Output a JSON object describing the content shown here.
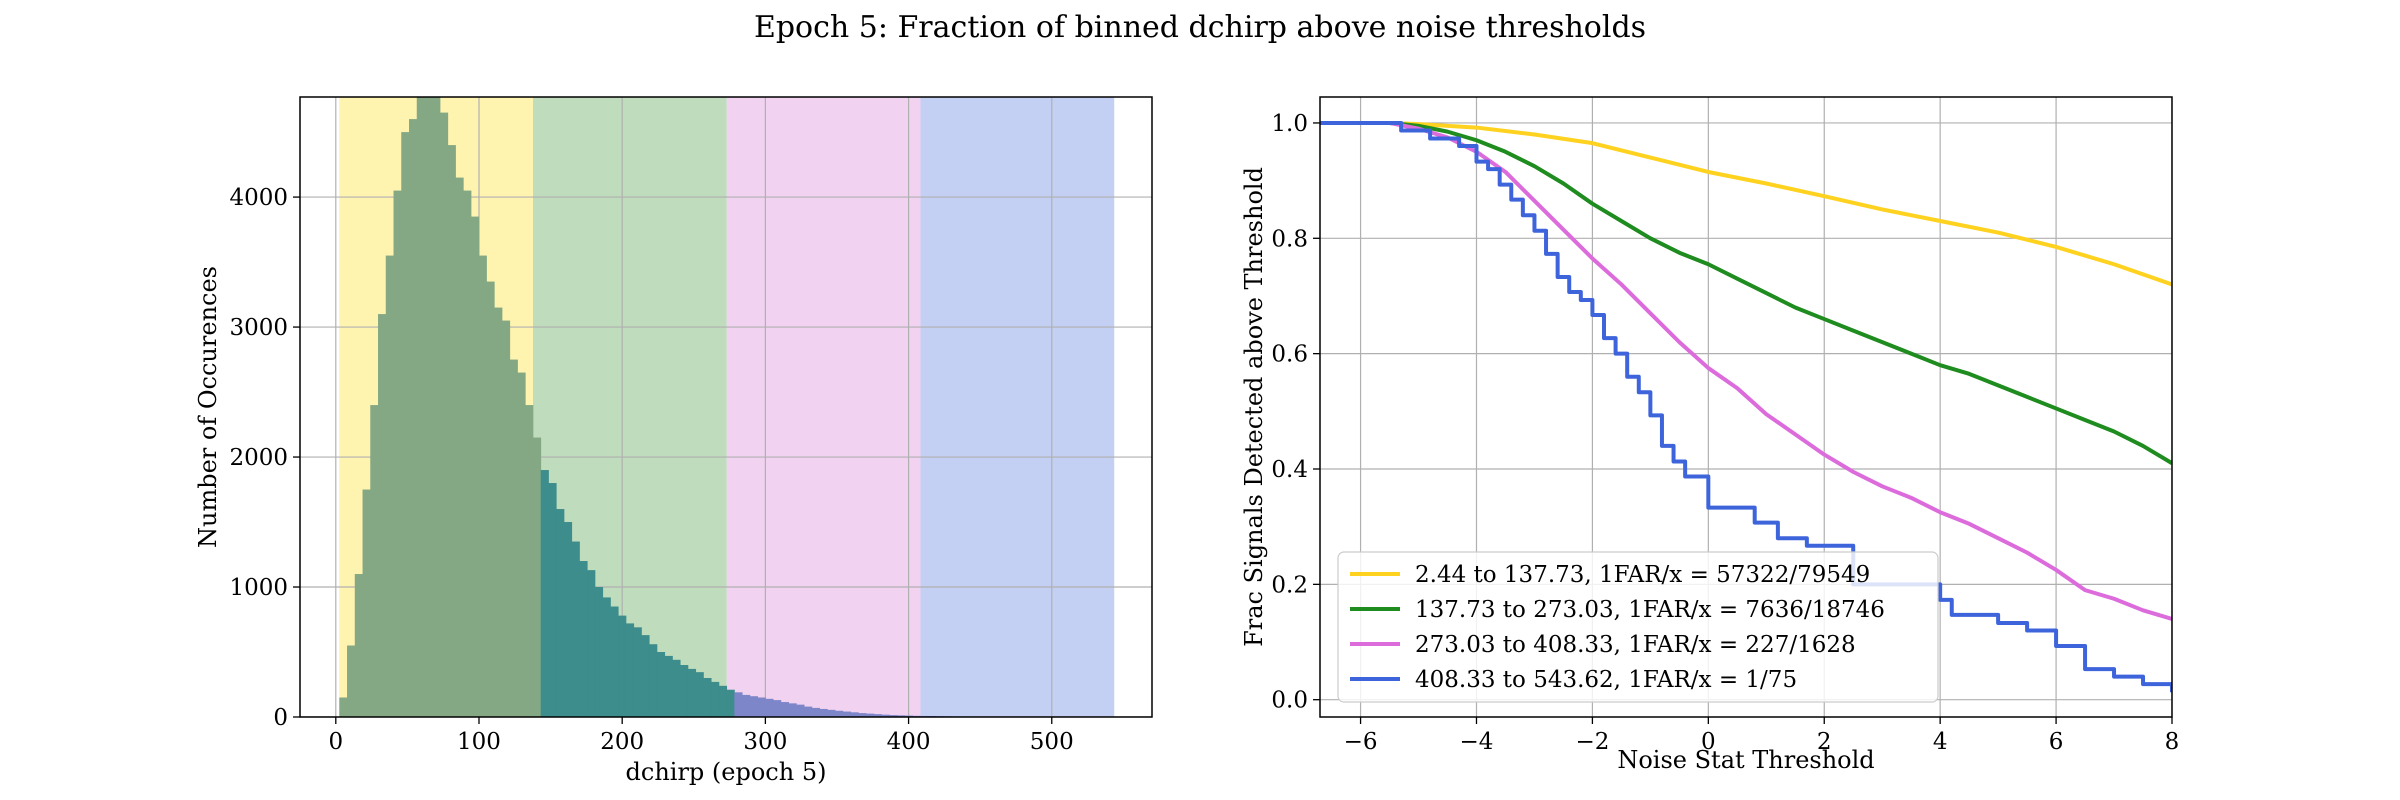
{
  "figure": {
    "title": "Epoch 5: Fraction of binned dchirp above noise thresholds"
  },
  "chart_data": [
    {
      "type": "bar",
      "subtype": "histogram",
      "xlabel": "dchirp (epoch 5)",
      "ylabel": "Number of Occurences",
      "xlim": [
        -25,
        570
      ],
      "ylim": [
        0,
        4770
      ],
      "xticks": [
        0,
        100,
        200,
        300,
        400,
        500
      ],
      "yticks": [
        0,
        1000,
        2000,
        3000,
        4000
      ],
      "grid": true,
      "bin_edges_start": 2.44,
      "bin_width": 5.41,
      "values": [
        150,
        550,
        1100,
        1750,
        2400,
        3100,
        3550,
        4050,
        4500,
        4600,
        4770,
        4770,
        4770,
        4650,
        4400,
        4150,
        4050,
        3850,
        3550,
        3350,
        3150,
        3050,
        2750,
        2650,
        2400,
        2150,
        1900,
        1800,
        1600,
        1500,
        1350,
        1200,
        1130,
        1000,
        920,
        850,
        780,
        720,
        690,
        630,
        560,
        500,
        470,
        440,
        400,
        370,
        345,
        300,
        270,
        240,
        210,
        190,
        170,
        160,
        150,
        140,
        130,
        115,
        105,
        95,
        80,
        70,
        62,
        55,
        48,
        42,
        36,
        30,
        26,
        22,
        18,
        15,
        13,
        11,
        9,
        8,
        7,
        6,
        5,
        4,
        4,
        3,
        3,
        2,
        2,
        2,
        1,
        1,
        1,
        1,
        1,
        1,
        1,
        0,
        0,
        0,
        0,
        0,
        0,
        0
      ],
      "bands": [
        {
          "from": 2.44,
          "to": 137.73,
          "color": "#fff3b0"
        },
        {
          "from": 137.73,
          "to": 273.03,
          "color": "#bfdcbc"
        },
        {
          "from": 273.03,
          "to": 408.33,
          "color": "#f1d3f1"
        },
        {
          "from": 408.33,
          "to": 543.62,
          "color": "#c4d0f3"
        }
      ],
      "bar_colors": [
        "#84a884",
        "#3d8d8d",
        "#7c86c8",
        "#5b70d8"
      ]
    },
    {
      "type": "line",
      "subtype": "step",
      "xlabel": "Noise Stat Threshold",
      "ylabel": "Frac Signals Detected above Threshold",
      "xlim": [
        -6.7,
        8
      ],
      "ylim": [
        -0.03,
        1.045
      ],
      "xticks": [
        -6,
        -4,
        -2,
        0,
        2,
        4,
        6,
        8
      ],
      "xtick_labels": [
        "−6",
        "−4",
        "−2",
        "0",
        "2",
        "4",
        "6",
        "8"
      ],
      "yticks": [
        0.0,
        0.2,
        0.4,
        0.6,
        0.8,
        1.0
      ],
      "ytick_labels": [
        "0.0",
        "0.2",
        "0.4",
        "0.6",
        "0.8",
        "1.0"
      ],
      "grid": true,
      "legend_position": "lower-left",
      "series": [
        {
          "name": "2.44 to 137.73, 1FAR/x = 57322/79549",
          "color": "#ffd21f",
          "x": [
            -6.7,
            -5.5,
            -5,
            -4,
            -3,
            -2,
            -1,
            0,
            1,
            2,
            3,
            4,
            5,
            6,
            7,
            8
          ],
          "y": [
            1.0,
            1.0,
            0.998,
            0.992,
            0.98,
            0.965,
            0.94,
            0.915,
            0.895,
            0.873,
            0.85,
            0.83,
            0.81,
            0.785,
            0.755,
            0.72
          ]
        },
        {
          "name": "137.73 to 273.03, 1FAR/x = 7636/18746",
          "color": "#1f8c1f",
          "x": [
            -6.7,
            -5.5,
            -5,
            -4.5,
            -4,
            -3.5,
            -3,
            -2.5,
            -2,
            -1.5,
            -1,
            -0.5,
            0,
            0.5,
            1,
            1.5,
            2,
            2.5,
            3,
            3.5,
            4,
            4.5,
            5,
            5.5,
            6,
            6.5,
            7,
            7.5,
            8
          ],
          "y": [
            1.0,
            1.0,
            0.995,
            0.985,
            0.97,
            0.95,
            0.925,
            0.895,
            0.86,
            0.83,
            0.8,
            0.775,
            0.755,
            0.73,
            0.705,
            0.68,
            0.66,
            0.64,
            0.62,
            0.6,
            0.58,
            0.565,
            0.545,
            0.525,
            0.505,
            0.485,
            0.465,
            0.44,
            0.41
          ]
        },
        {
          "name": "273.03 to 408.33, 1FAR/x = 227/1628",
          "color": "#dc6bdc",
          "x": [
            -6.7,
            -5.5,
            -5,
            -4.5,
            -4,
            -3.5,
            -3,
            -2.5,
            -2,
            -1.5,
            -1,
            -0.5,
            0,
            0.5,
            1,
            1.5,
            2,
            2.5,
            3,
            3.5,
            4,
            4.5,
            5,
            5.5,
            6,
            6.5,
            7,
            7.5,
            8
          ],
          "y": [
            1.0,
            1.0,
            0.99,
            0.975,
            0.95,
            0.915,
            0.865,
            0.815,
            0.765,
            0.72,
            0.67,
            0.62,
            0.575,
            0.54,
            0.495,
            0.46,
            0.425,
            0.395,
            0.37,
            0.35,
            0.325,
            0.305,
            0.28,
            0.255,
            0.225,
            0.19,
            0.175,
            0.155,
            0.14
          ]
        },
        {
          "name": "408.33 to 543.62, 1FAR/x = 1/75",
          "color": "#3e64dc",
          "x": [
            -6.7,
            -5.3,
            -4.8,
            -4.3,
            -4.0,
            -3.8,
            -3.6,
            -3.4,
            -3.2,
            -3.0,
            -2.8,
            -2.6,
            -2.4,
            -2.2,
            -2.0,
            -1.8,
            -1.6,
            -1.4,
            -1.2,
            -1.0,
            -0.8,
            -0.6,
            -0.4,
            0.0,
            0.8,
            1.2,
            1.7,
            2.5,
            4.0,
            4.2,
            5.0,
            5.5,
            6.0,
            6.5,
            7.0,
            7.5,
            8.0
          ],
          "y": [
            1.0,
            0.987,
            0.973,
            0.96,
            0.933,
            0.92,
            0.893,
            0.867,
            0.84,
            0.813,
            0.773,
            0.733,
            0.707,
            0.693,
            0.667,
            0.627,
            0.6,
            0.56,
            0.533,
            0.493,
            0.44,
            0.413,
            0.387,
            0.333,
            0.307,
            0.28,
            0.267,
            0.2,
            0.173,
            0.147,
            0.133,
            0.12,
            0.093,
            0.053,
            0.04,
            0.027,
            0.013
          ]
        }
      ]
    }
  ]
}
